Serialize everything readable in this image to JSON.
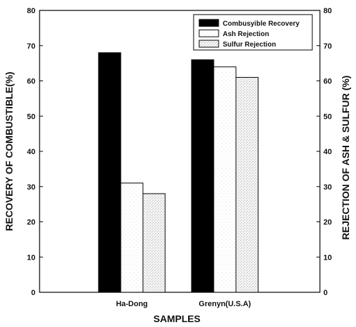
{
  "chart_data": {
    "type": "bar",
    "title": "",
    "xlabel": "SAMPLES",
    "ylabel": "RECOVERY OF COMBUSTIBLE(%)",
    "y2label": "REJECTION OF ASH  &  SULFUR (%)",
    "categories": [
      "Ha-Dong",
      "Grenyn(U.S.A)"
    ],
    "series": [
      {
        "name": "Combusyible Recovery",
        "values": [
          68,
          66
        ],
        "color": "#000000",
        "fill": "solid",
        "axis": "left"
      },
      {
        "name": "Ash Rejection",
        "values": [
          31,
          64
        ],
        "color": "#ffffff",
        "fill": "light-speckle",
        "axis": "right"
      },
      {
        "name": "Sulfur Rejection",
        "values": [
          28,
          61
        ],
        "color": "#ffffff",
        "fill": "speckle",
        "axis": "right"
      }
    ],
    "ylim": [
      0,
      80
    ],
    "y2lim": [
      0,
      80
    ],
    "yticks": [
      "0",
      "10",
      "20",
      "30",
      "40",
      "50",
      "60",
      "70",
      "80"
    ],
    "y2ticks": [
      "0",
      "10",
      "20",
      "30",
      "40",
      "50",
      "60",
      "70",
      "80"
    ],
    "legend_position": "top-right",
    "grid": false
  }
}
